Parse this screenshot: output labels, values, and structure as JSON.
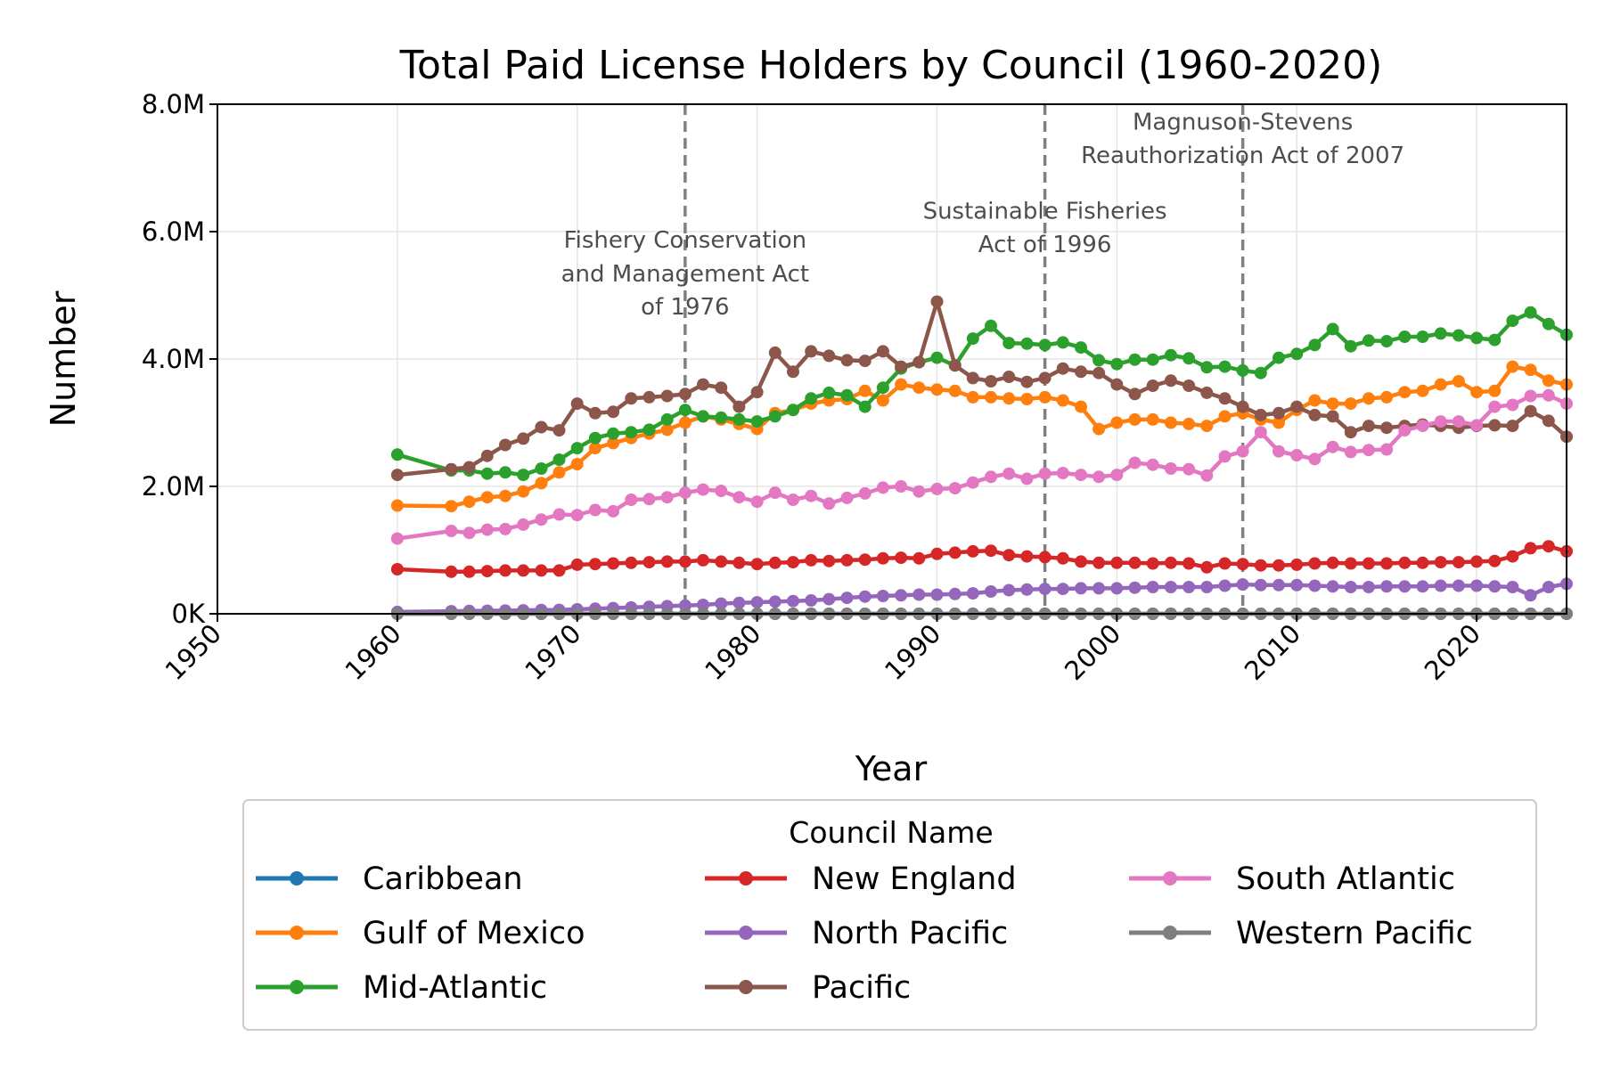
{
  "chart_data": {
    "type": "line",
    "title": "Total Paid License Holders by Council (1960-2020)",
    "xlabel": "Year",
    "ylabel": "Number",
    "xlim": [
      1950,
      2025
    ],
    "ylim": [
      0,
      8000000
    ],
    "xticks": [
      1950,
      1960,
      1970,
      1980,
      1990,
      2000,
      2010,
      2020
    ],
    "yticks": [
      0,
      2000000,
      4000000,
      6000000,
      8000000
    ],
    "ytick_labels": [
      "0K",
      "2.0M",
      "4.0M",
      "6.0M",
      "8.0M"
    ],
    "grid": true,
    "legend": {
      "title": "Council Name",
      "placement": "below plot, three columns",
      "entries": [
        "Caribbean",
        "Gulf of Mexico",
        "Mid-Atlantic",
        "New England",
        "North Pacific",
        "Pacific",
        "South Atlantic",
        "Western Pacific"
      ]
    },
    "annotations": [
      {
        "x": 1976,
        "lines": [
          "Fishery Conservation",
          "and Management Act",
          "of 1976"
        ],
        "y": [
          5750000,
          5220000,
          4700000
        ]
      },
      {
        "x": 1996,
        "lines": [
          "Sustainable Fisheries",
          "Act of 1996"
        ],
        "y": [
          6200000,
          5680000
        ]
      },
      {
        "x": 2007,
        "lines": [
          "Magnuson-Stevens",
          "Reauthorization Act of 2007"
        ],
        "y": [
          7600000,
          7080000
        ]
      }
    ],
    "x": [
      1960,
      1963,
      1964,
      1965,
      1966,
      1967,
      1968,
      1969,
      1970,
      1971,
      1972,
      1973,
      1974,
      1975,
      1976,
      1977,
      1978,
      1979,
      1980,
      1981,
      1982,
      1983,
      1984,
      1985,
      1986,
      1987,
      1988,
      1989,
      1990,
      1991,
      1992,
      1993,
      1994,
      1995,
      1996,
      1997,
      1998,
      1999,
      2000,
      2001,
      2002,
      2003,
      2004,
      2005,
      2006,
      2007,
      2008,
      2009,
      2010,
      2011,
      2012,
      2013,
      2014,
      2015,
      2016,
      2017,
      2018,
      2019,
      2020,
      2021,
      2022,
      2023,
      2024,
      2025
    ],
    "series": [
      {
        "name": "Caribbean",
        "color": "#1f77b4",
        "values": [
          0,
          0,
          0,
          0,
          0,
          0,
          0,
          0,
          0,
          0,
          0,
          0,
          0,
          0,
          0,
          0,
          0,
          0,
          0,
          0,
          0,
          0,
          0,
          0,
          0,
          0,
          0,
          0,
          0,
          0,
          0,
          0,
          0,
          0,
          0,
          0,
          0,
          0,
          0,
          0,
          0,
          0,
          0,
          0,
          0,
          0,
          0,
          0,
          0,
          0,
          0,
          0,
          0,
          0,
          0,
          0,
          0,
          0,
          0,
          0,
          0,
          0,
          0,
          0
        ]
      },
      {
        "name": "Gulf of Mexico",
        "color": "#ff7f0e",
        "values": [
          1700000,
          1690000,
          1760000,
          1830000,
          1850000,
          1920000,
          2050000,
          2220000,
          2350000,
          2600000,
          2680000,
          2760000,
          2830000,
          2890000,
          3000000,
          3100000,
          3050000,
          2980000,
          2900000,
          3150000,
          3200000,
          3300000,
          3350000,
          3370000,
          3500000,
          3350000,
          3600000,
          3550000,
          3520000,
          3500000,
          3400000,
          3400000,
          3380000,
          3370000,
          3400000,
          3350000,
          3250000,
          2900000,
          3000000,
          3050000,
          3050000,
          3000000,
          2980000,
          2950000,
          3100000,
          3150000,
          3050000,
          3000000,
          3200000,
          3350000,
          3300000,
          3300000,
          3380000,
          3400000,
          3480000,
          3500000,
          3600000,
          3650000,
          3480000,
          3500000,
          3880000,
          3830000,
          3660000,
          3600000
        ]
      },
      {
        "name": "Mid-Atlantic",
        "color": "#2ca02c",
        "values": [
          2500000,
          2250000,
          2250000,
          2200000,
          2220000,
          2180000,
          2280000,
          2420000,
          2600000,
          2760000,
          2830000,
          2850000,
          2890000,
          3050000,
          3200000,
          3100000,
          3080000,
          3050000,
          3020000,
          3100000,
          3200000,
          3380000,
          3470000,
          3430000,
          3250000,
          3550000,
          3850000,
          3950000,
          4020000,
          3900000,
          4320000,
          4520000,
          4250000,
          4240000,
          4220000,
          4260000,
          4180000,
          3980000,
          3920000,
          3990000,
          3990000,
          4060000,
          4010000,
          3870000,
          3880000,
          3820000,
          3780000,
          4020000,
          4080000,
          4220000,
          4470000,
          4200000,
          4290000,
          4280000,
          4350000,
          4350000,
          4400000,
          4370000,
          4330000,
          4300000,
          4600000,
          4730000,
          4550000,
          4380000
        ]
      },
      {
        "name": "New England",
        "color": "#d62728",
        "values": [
          700000,
          660000,
          660000,
          670000,
          680000,
          680000,
          680000,
          680000,
          770000,
          780000,
          790000,
          800000,
          810000,
          820000,
          820000,
          840000,
          820000,
          800000,
          780000,
          800000,
          810000,
          840000,
          830000,
          840000,
          850000,
          870000,
          880000,
          870000,
          940000,
          960000,
          980000,
          990000,
          920000,
          900000,
          890000,
          870000,
          820000,
          800000,
          800000,
          800000,
          790000,
          800000,
          790000,
          730000,
          790000,
          780000,
          760000,
          760000,
          770000,
          790000,
          800000,
          790000,
          790000,
          790000,
          800000,
          800000,
          810000,
          810000,
          820000,
          830000,
          900000,
          1030000,
          1060000,
          980000
        ]
      },
      {
        "name": "North Pacific",
        "color": "#9467bd",
        "values": [
          30000,
          40000,
          45000,
          48000,
          50000,
          55000,
          60000,
          62000,
          70000,
          80000,
          90000,
          100000,
          110000,
          120000,
          130000,
          140000,
          160000,
          170000,
          180000,
          190000,
          200000,
          210000,
          230000,
          250000,
          270000,
          280000,
          290000,
          300000,
          300000,
          310000,
          320000,
          350000,
          370000,
          380000,
          390000,
          390000,
          400000,
          400000,
          400000,
          410000,
          420000,
          420000,
          420000,
          420000,
          440000,
          460000,
          450000,
          450000,
          450000,
          440000,
          430000,
          420000,
          420000,
          430000,
          430000,
          430000,
          440000,
          440000,
          440000,
          430000,
          420000,
          290000,
          420000,
          470000
        ]
      },
      {
        "name": "Pacific",
        "color": "#8c564b",
        "values": [
          2180000,
          2270000,
          2300000,
          2480000,
          2650000,
          2750000,
          2930000,
          2880000,
          3300000,
          3150000,
          3170000,
          3380000,
          3400000,
          3420000,
          3450000,
          3600000,
          3550000,
          3250000,
          3480000,
          4100000,
          3800000,
          4120000,
          4050000,
          3980000,
          3970000,
          4120000,
          3880000,
          3950000,
          4900000,
          3900000,
          3700000,
          3650000,
          3720000,
          3640000,
          3700000,
          3850000,
          3800000,
          3780000,
          3600000,
          3450000,
          3580000,
          3660000,
          3580000,
          3470000,
          3380000,
          3250000,
          3120000,
          3150000,
          3250000,
          3120000,
          3100000,
          2850000,
          2950000,
          2920000,
          2950000,
          2970000,
          2950000,
          2920000,
          2950000,
          2960000,
          2950000,
          3180000,
          3030000,
          2780000
        ]
      },
      {
        "name": "South Atlantic",
        "color": "#e377c2",
        "values": [
          1180000,
          1300000,
          1270000,
          1320000,
          1330000,
          1400000,
          1480000,
          1560000,
          1550000,
          1630000,
          1610000,
          1790000,
          1800000,
          1830000,
          1900000,
          1950000,
          1930000,
          1830000,
          1760000,
          1900000,
          1790000,
          1850000,
          1730000,
          1820000,
          1890000,
          1980000,
          2000000,
          1920000,
          1960000,
          1970000,
          2060000,
          2150000,
          2200000,
          2120000,
          2200000,
          2210000,
          2180000,
          2150000,
          2180000,
          2370000,
          2340000,
          2280000,
          2270000,
          2170000,
          2470000,
          2550000,
          2850000,
          2550000,
          2490000,
          2430000,
          2620000,
          2540000,
          2570000,
          2580000,
          2880000,
          2950000,
          3020000,
          3020000,
          2960000,
          3250000,
          3280000,
          3420000,
          3430000,
          3300000
        ]
      },
      {
        "name": "Western Pacific",
        "color": "#7f7f7f",
        "values": [
          0,
          0,
          0,
          0,
          0,
          0,
          0,
          0,
          0,
          0,
          0,
          0,
          0,
          0,
          0,
          0,
          0,
          0,
          0,
          0,
          0,
          0,
          0,
          0,
          0,
          0,
          0,
          0,
          0,
          0,
          0,
          0,
          0,
          0,
          0,
          0,
          0,
          0,
          0,
          0,
          0,
          0,
          0,
          0,
          0,
          0,
          0,
          0,
          0,
          0,
          0,
          0,
          0,
          0,
          0,
          0,
          0,
          0,
          0,
          0,
          0,
          0,
          0,
          0
        ]
      }
    ]
  }
}
